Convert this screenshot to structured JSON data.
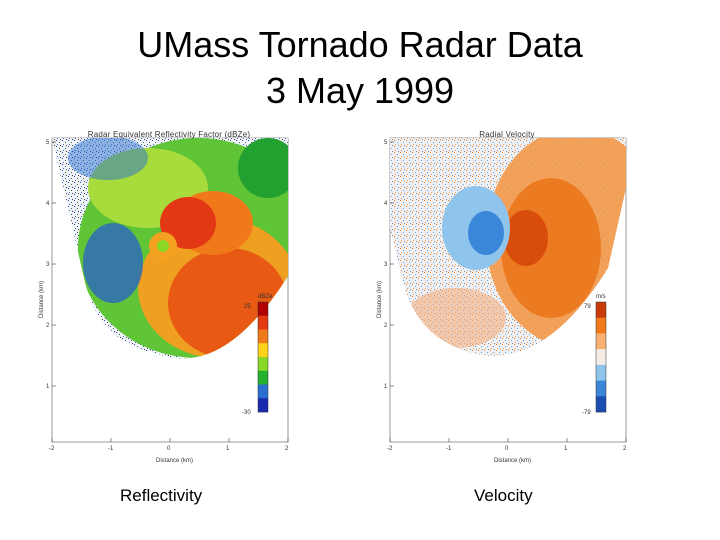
{
  "slide": {
    "title_line1": "UMass Tornado Radar Data",
    "title_line2": "3 May 1999"
  },
  "panels": [
    {
      "name": "reflectivity",
      "title": "Radar Equivalent Reflectivity Factor (dBZe)",
      "caption": "Reflectivity",
      "xlabel": "Distance (km)",
      "ylabel": "Distance (km)",
      "xticks": [
        "-2",
        "-1",
        "0",
        "1",
        "2"
      ],
      "yticks": [
        "5",
        "4",
        "3",
        "2",
        "1"
      ],
      "colorbar_unit": "dBZe",
      "colorbar_max": "25",
      "colorbar_min": "-30",
      "colors": [
        "#b00000",
        "#e33a10",
        "#f07a1a",
        "#ffd21a",
        "#8ad826",
        "#22b030",
        "#2a6fd0",
        "#1a2ab0"
      ]
    },
    {
      "name": "velocity",
      "title": "Radial Velocity",
      "caption": "Velocity",
      "xlabel": "Distance (km)",
      "ylabel": "Distance (km)",
      "xticks": [
        "-2",
        "-1",
        "0",
        "1",
        "2"
      ],
      "yticks": [
        "5",
        "4",
        "3",
        "2",
        "1"
      ],
      "colorbar_unit": "m/s",
      "colorbar_max": "79",
      "colorbar_min": "-79",
      "colors": [
        "#c83a08",
        "#f07a1a",
        "#f9b070",
        "#f4ece4",
        "#8fc4ec",
        "#3a86d8",
        "#1a4eb0"
      ]
    }
  ]
}
